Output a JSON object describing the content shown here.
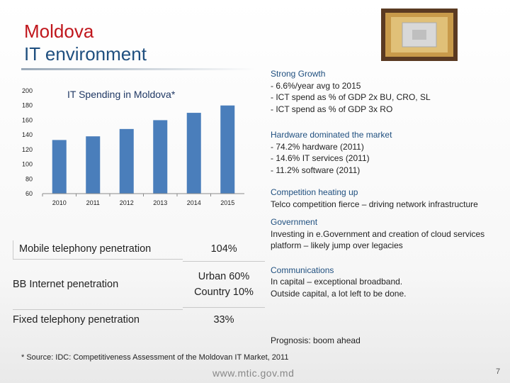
{
  "title": {
    "line1": "Moldova",
    "line2": "IT environment"
  },
  "chart_data": {
    "type": "bar",
    "title": "IT Spending in Moldova*",
    "categories": [
      "2010",
      "2011",
      "2012",
      "2013",
      "2014",
      "2015"
    ],
    "values": [
      133,
      138,
      148,
      160,
      170,
      180
    ],
    "ylim": [
      60,
      200
    ],
    "yticks": [
      "200",
      "180",
      "160",
      "140",
      "120",
      "100",
      "80",
      "60"
    ],
    "ytick_values": [
      200,
      180,
      160,
      140,
      120,
      100,
      80,
      60
    ],
    "grid": false,
    "bar_color": "#4a7ebb"
  },
  "metrics": [
    {
      "label": "Mobile telephony penetration",
      "value": [
        "104%"
      ]
    },
    {
      "label": "BB Internet penetration",
      "value": [
        "Urban 60%",
        "Country 10%"
      ]
    },
    {
      "label": "Fixed telephony penetration",
      "value": [
        "33%"
      ]
    }
  ],
  "notes": {
    "growth": {
      "head": "Strong Growth",
      "lines": [
        "- 6.6%/year avg to 2015",
        "- ICT spend as % of GDP 2x BU, CRO, SL",
        "- ICT spend as % of GDP 3x RO"
      ]
    },
    "hardware": {
      "head": "Hardware dominated the market",
      "lines": [
        "- 74.2% hardware (2011)",
        "- 14.6% IT services (2011)",
        "- 11.2% software (2011)"
      ]
    },
    "competition": {
      "head": "Competition heating up",
      "lines": [
        "Telco competition fierce – driving network infrastructure"
      ]
    },
    "government": {
      "head": "Government",
      "lines": [
        "Investing in e.Government and creation of cloud services platform – likely jump over legacies"
      ]
    },
    "communications": {
      "head": "Communications",
      "lines": [
        "In capital – exceptional broadband.",
        "Outside capital, a lot left to be done."
      ]
    }
  },
  "prognosis": "Prognosis: boom ahead",
  "source": "* Source: IDC: Competitiveness Assessment of the Moldovan IT Market, 2011",
  "footer": {
    "url": "www.mtic.gov.md",
    "page": "7"
  },
  "colors": {
    "title_red": "#c0161c",
    "title_blue": "#1f4f7f",
    "bar": "#4a7ebb"
  },
  "icons": {
    "chip": "cpu-chip-image"
  }
}
